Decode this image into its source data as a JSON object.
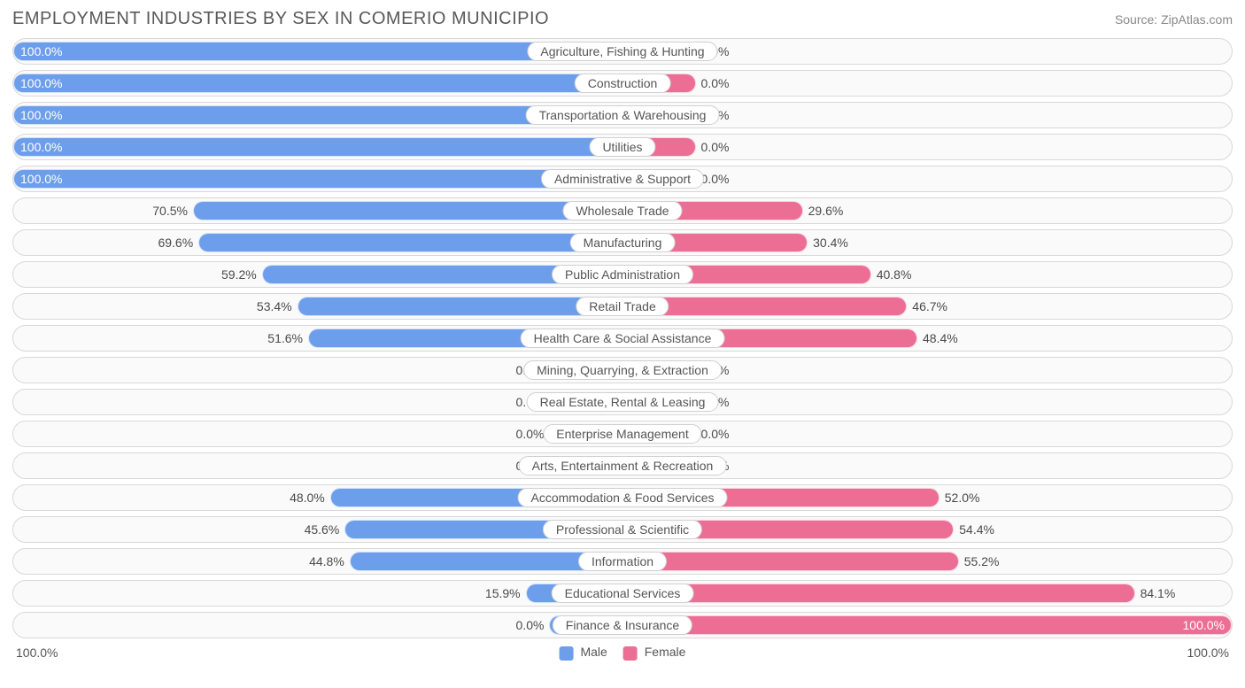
{
  "title": "EMPLOYMENT INDUSTRIES BY SEX IN COMERIO MUNICIPIO",
  "source": "Source: ZipAtlas.com",
  "colors": {
    "male": "#6d9eeb",
    "female": "#ec6e95",
    "row_border": "#d8d8d8",
    "row_bg": "#fafafa",
    "text": "#595959",
    "pct_text": "#4a4a4a",
    "background": "#ffffff"
  },
  "chart": {
    "type": "diverging-bar",
    "min_bar_pct": 12,
    "axis_label": "100.0%",
    "legend": {
      "male": "Male",
      "female": "Female"
    },
    "rows": [
      {
        "label": "Agriculture, Fishing & Hunting",
        "male": 100.0,
        "female": 0.0
      },
      {
        "label": "Construction",
        "male": 100.0,
        "female": 0.0
      },
      {
        "label": "Transportation & Warehousing",
        "male": 100.0,
        "female": 0.0
      },
      {
        "label": "Utilities",
        "male": 100.0,
        "female": 0.0
      },
      {
        "label": "Administrative & Support",
        "male": 100.0,
        "female": 0.0
      },
      {
        "label": "Wholesale Trade",
        "male": 70.5,
        "female": 29.6
      },
      {
        "label": "Manufacturing",
        "male": 69.6,
        "female": 30.4
      },
      {
        "label": "Public Administration",
        "male": 59.2,
        "female": 40.8
      },
      {
        "label": "Retail Trade",
        "male": 53.4,
        "female": 46.7
      },
      {
        "label": "Health Care & Social Assistance",
        "male": 51.6,
        "female": 48.4
      },
      {
        "label": "Mining, Quarrying, & Extraction",
        "male": 0.0,
        "female": 0.0
      },
      {
        "label": "Real Estate, Rental & Leasing",
        "male": 0.0,
        "female": 0.0
      },
      {
        "label": "Enterprise Management",
        "male": 0.0,
        "female": 0.0
      },
      {
        "label": "Arts, Entertainment & Recreation",
        "male": 0.0,
        "female": 0.0
      },
      {
        "label": "Accommodation & Food Services",
        "male": 48.0,
        "female": 52.0
      },
      {
        "label": "Professional & Scientific",
        "male": 45.6,
        "female": 54.4
      },
      {
        "label": "Information",
        "male": 44.8,
        "female": 55.2
      },
      {
        "label": "Educational Services",
        "male": 15.9,
        "female": 84.1
      },
      {
        "label": "Finance & Insurance",
        "male": 0.0,
        "female": 100.0
      }
    ]
  }
}
